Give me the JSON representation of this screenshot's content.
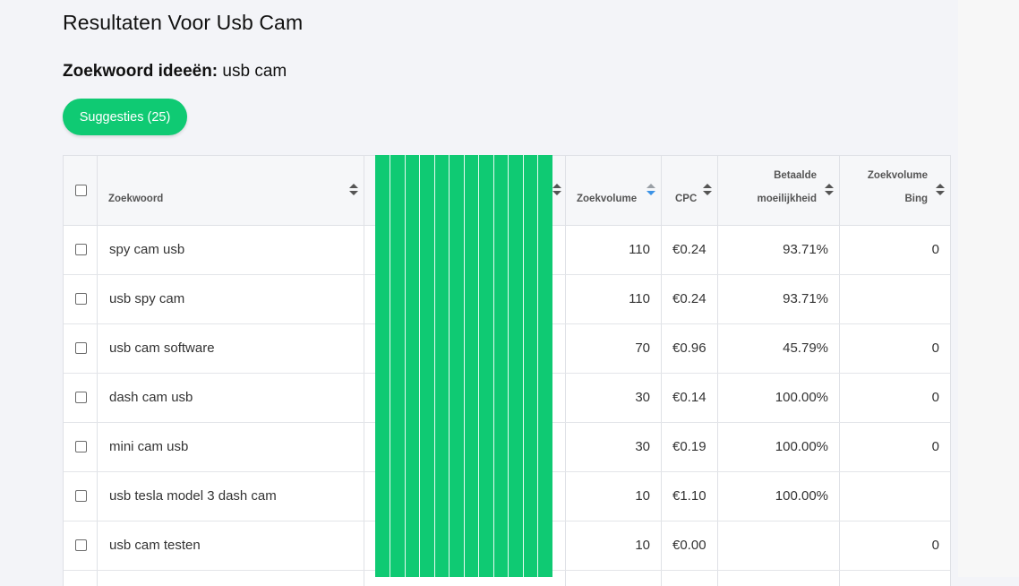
{
  "page": {
    "title": "Resultaten Voor Usb Cam",
    "keyword_label": "Zoekwoord ideeën:",
    "keyword_value": "usb cam",
    "suggestions_button": "Suggesties (25)"
  },
  "table": {
    "headers": {
      "keyword": "Zoekwoord",
      "volume": "Zoekvolume",
      "cpc": "CPC",
      "difficulty_line1": "Betaalde",
      "difficulty_line2": "moeilijkheid",
      "bing_line1": "Zoekvolume",
      "bing_line2": "Bing"
    },
    "rows": [
      {
        "keyword": "spy cam usb",
        "volume": "110",
        "cpc": "€0.24",
        "difficulty": "93.71%",
        "bing": "0"
      },
      {
        "keyword": "usb spy cam",
        "volume": "110",
        "cpc": "€0.24",
        "difficulty": "93.71%",
        "bing": ""
      },
      {
        "keyword": "usb cam software",
        "volume": "70",
        "cpc": "€0.96",
        "difficulty": "45.79%",
        "bing": "0"
      },
      {
        "keyword": "dash cam usb",
        "volume": "30",
        "cpc": "€0.14",
        "difficulty": "100.00%",
        "bing": "0"
      },
      {
        "keyword": "mini cam usb",
        "volume": "30",
        "cpc": "€0.19",
        "difficulty": "100.00%",
        "bing": "0"
      },
      {
        "keyword": "usb tesla model 3 dash cam",
        "volume": "10",
        "cpc": "€1.10",
        "difficulty": "100.00%",
        "bing": ""
      },
      {
        "keyword": "usb cam testen",
        "volume": "10",
        "cpc": "€0.00",
        "difficulty": "",
        "bing": "0"
      }
    ]
  },
  "colors": {
    "accent": "#0fca73",
    "sort_active": "#3c93e6",
    "background": "#f3f4f8"
  }
}
